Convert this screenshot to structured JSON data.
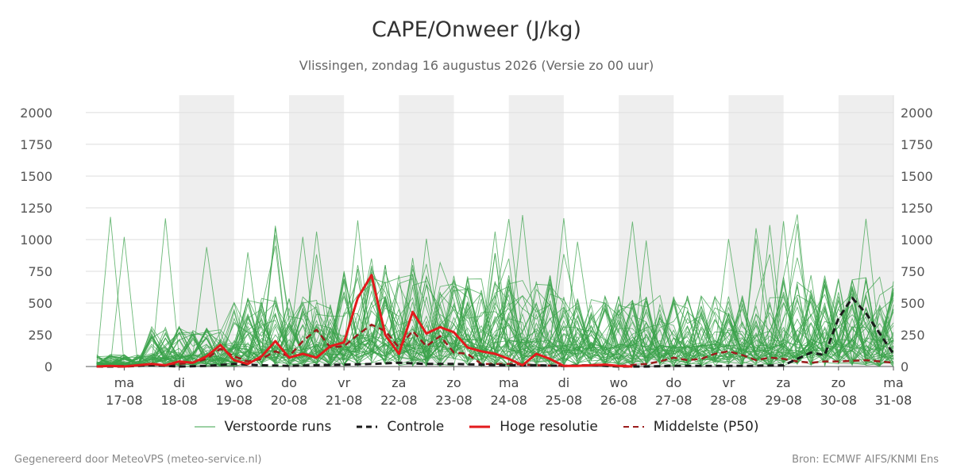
{
  "title": "CAPE/Onweer (J/kg)",
  "subtitle": "Vlissingen, zondag 16 augustus 2026 (Versie zo 00 uur)",
  "footer_left": "Gegenereerd door MeteoVPS (meteo-service.nl)",
  "footer_right": "Bron: ECMWF AIFS/KNMI Ens",
  "legend": [
    {
      "label": "Verstoorde runs",
      "color": "#3aa14a",
      "style": "thin"
    },
    {
      "label": "Controle",
      "color": "#1a1a1a",
      "style": "dashed"
    },
    {
      "label": "Hoge resolutie",
      "color": "#e31a1c",
      "style": "solid"
    },
    {
      "label": "Middelste (P50)",
      "color": "#9b1c1c",
      "style": "dashed"
    }
  ],
  "chart_data": {
    "type": "line",
    "title": "CAPE/Onweer (J/kg)",
    "ylim": [
      0,
      2137
    ],
    "yticks": [
      0,
      250,
      500,
      750,
      1000,
      1250,
      1500,
      1750,
      2000
    ],
    "x_range_days": [
      16.3,
      31.0
    ],
    "day_ticks": [
      {
        "day": "ma",
        "date": "17-08"
      },
      {
        "day": "di",
        "date": "18-08"
      },
      {
        "day": "wo",
        "date": "19-08"
      },
      {
        "day": "do",
        "date": "20-08"
      },
      {
        "day": "vr",
        "date": "21-08"
      },
      {
        "day": "za",
        "date": "22-08"
      },
      {
        "day": "zo",
        "date": "23-08"
      },
      {
        "day": "ma",
        "date": "24-08"
      },
      {
        "day": "di",
        "date": "25-08"
      },
      {
        "day": "wo",
        "date": "26-08"
      },
      {
        "day": "do",
        "date": "27-08"
      },
      {
        "day": "vr",
        "date": "28-08"
      },
      {
        "day": "za",
        "date": "29-08"
      },
      {
        "day": "zo",
        "date": "30-08"
      },
      {
        "day": "ma",
        "date": "31-08"
      }
    ],
    "shaded_days": [
      "18-08",
      "20-08",
      "22-08",
      "24-08",
      "26-08",
      "28-08",
      "30-08"
    ],
    "grid": true,
    "legend_position": "bottom",
    "colors": {
      "perturbed": "#3aa14a",
      "control": "#1a1a1a",
      "hires": "#e31a1c",
      "median": "#9b1c1c"
    },
    "series": [
      {
        "name": "Hoge resolutie",
        "x": [
          16.5,
          16.75,
          17,
          17.25,
          17.5,
          17.75,
          18,
          18.25,
          18.5,
          18.75,
          19,
          19.25,
          19.5,
          19.75,
          20,
          20.25,
          20.5,
          20.75,
          21,
          21.25,
          21.5,
          21.75,
          22,
          22.25,
          22.5,
          22.75,
          23,
          23.25,
          23.5,
          23.75,
          24,
          24.25,
          24.5,
          24.75,
          25,
          25.25,
          25.5,
          25.75,
          26,
          26.25
        ],
        "y": [
          0,
          5,
          0,
          10,
          20,
          10,
          40,
          30,
          80,
          170,
          50,
          20,
          80,
          200,
          70,
          100,
          70,
          160,
          190,
          540,
          720,
          250,
          100,
          430,
          260,
          310,
          270,
          150,
          120,
          100,
          60,
          10,
          100,
          60,
          5,
          5,
          10,
          15,
          5,
          0
        ]
      },
      {
        "name": "Controle",
        "x": [
          16.5,
          17,
          17.5,
          18,
          18.5,
          19,
          19.5,
          20,
          20.5,
          21,
          21.5,
          22,
          22.5,
          23,
          23.5,
          24,
          24.5,
          25,
          25.5,
          26,
          26.5,
          27,
          27.5,
          28,
          28.5,
          29,
          29.25,
          29.5,
          29.75,
          30,
          30.25,
          30.5,
          30.75,
          31
        ],
        "y": [
          0,
          0,
          10,
          0,
          5,
          20,
          10,
          5,
          10,
          15,
          20,
          30,
          20,
          20,
          15,
          10,
          10,
          5,
          10,
          0,
          0,
          5,
          5,
          5,
          5,
          10,
          60,
          110,
          90,
          380,
          540,
          420,
          260,
          100
        ]
      },
      {
        "name": "Middelste (P50)",
        "x": [
          16.5,
          17,
          17.5,
          17.75,
          18,
          18.25,
          18.5,
          18.75,
          19,
          19.25,
          19.5,
          19.75,
          20,
          20.25,
          20.5,
          20.75,
          21,
          21.25,
          21.5,
          21.75,
          22,
          22.25,
          22.5,
          22.75,
          23,
          23.25,
          23.5,
          23.75,
          24,
          24.5,
          25,
          25.5,
          26,
          26.5,
          26.75,
          27,
          27.25,
          27.5,
          27.75,
          28,
          28.25,
          28.5,
          28.75,
          29,
          29.25,
          29.5,
          29.75,
          30,
          30.5,
          31
        ],
        "y": [
          0,
          5,
          10,
          10,
          20,
          30,
          60,
          140,
          80,
          40,
          60,
          120,
          80,
          200,
          290,
          150,
          160,
          250,
          330,
          280,
          150,
          280,
          160,
          240,
          110,
          100,
          20,
          20,
          20,
          10,
          5,
          10,
          5,
          20,
          40,
          70,
          50,
          60,
          100,
          120,
          90,
          50,
          70,
          60,
          40,
          30,
          40,
          40,
          50,
          30
        ]
      }
    ]
  }
}
